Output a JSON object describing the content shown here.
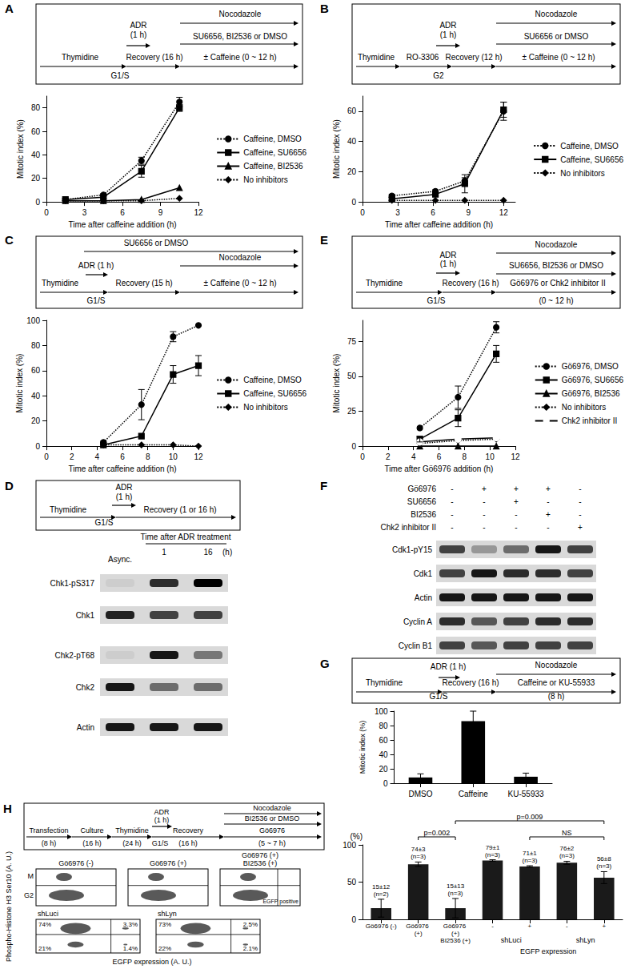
{
  "chart_data": [
    {
      "panel": "A",
      "type": "line",
      "protocol": [
        "Nocodazole",
        "ADR",
        "(1 h)",
        "SU6656, BI2536 or DMSO",
        "Thymidine",
        "G1/S",
        "Recovery (16 h)",
        "± Caffeine (0 ~ 12 h)"
      ],
      "xlabel": "Time after caffeine addition (h)",
      "ylabel": "Mitotic index (%)",
      "xlim": [
        0,
        12
      ],
      "xticks": [
        0,
        3,
        6,
        9,
        12
      ],
      "ylim": [
        0,
        90
      ],
      "yticks": [
        0,
        20,
        40,
        60,
        80
      ],
      "grid": false,
      "legend": "right",
      "x": [
        1.5,
        4.5,
        7.5,
        10.5
      ],
      "series": [
        {
          "name": "Caffeine, DMSO",
          "color": "#000000",
          "marker": "circle",
          "line_style": "dotted",
          "values": [
            2,
            6,
            35,
            85
          ],
          "errors": [
            1,
            1,
            3,
            4
          ]
        },
        {
          "name": "Caffeine, SU6656",
          "color": "#000000",
          "marker": "square",
          "line_style": "solid",
          "values": [
            2,
            4,
            26,
            80
          ],
          "errors": [
            1,
            1,
            5,
            3
          ]
        },
        {
          "name": "Caffeine, BI2536",
          "color": "#000000",
          "marker": "triangle",
          "line_style": "solid",
          "values": [
            1,
            1,
            2,
            12
          ],
          "errors": [
            null,
            null,
            null,
            null
          ]
        },
        {
          "name": "No inhibitors",
          "color": "#000000",
          "marker": "diamond",
          "line_style": "dotted",
          "values": [
            1,
            1,
            1,
            3
          ],
          "errors": [
            null,
            null,
            null,
            null
          ]
        }
      ]
    },
    {
      "panel": "B",
      "type": "line",
      "protocol": [
        "Nocodazole",
        "ADR",
        "(1 h)",
        "SU6656 or DMSO",
        "Thymidine",
        "RO-3306",
        "G2",
        "Recovery (12 h)",
        "± Caffeine (0 ~ 12 h)"
      ],
      "xlabel": "Time after caffeine addition (h)",
      "ylabel": "Mitotic index (%)",
      "xlim": [
        0,
        13
      ],
      "xticks": [
        0,
        3,
        6,
        9,
        12
      ],
      "ylim": [
        0,
        70
      ],
      "yticks": [
        0,
        20,
        40,
        60
      ],
      "grid": false,
      "legend": "right",
      "x": [
        2.5,
        6.2,
        8.7,
        12
      ],
      "series": [
        {
          "name": "Caffeine, DMSO",
          "color": "#000000",
          "marker": "circle",
          "line_style": "dotted",
          "values": [
            4,
            7,
            14,
            60
          ],
          "errors": [
            1,
            1,
            2,
            6
          ]
        },
        {
          "name": "Caffeine, SU6656",
          "color": "#000000",
          "marker": "square",
          "line_style": "solid",
          "values": [
            2,
            5,
            12,
            61
          ],
          "errors": [
            1,
            1,
            6,
            5
          ]
        },
        {
          "name": "No inhibitors",
          "color": "#000000",
          "marker": "diamond",
          "line_style": "dotted",
          "values": [
            1,
            1,
            1,
            1
          ],
          "errors": [
            null,
            null,
            null,
            null
          ]
        }
      ]
    },
    {
      "panel": "C",
      "type": "line",
      "protocol": [
        "SU6656 or DMSO",
        "Nocodazole",
        "ADR (1 h)",
        "Thymidine",
        "G1/S",
        "Recovery (15 h)",
        "± Caffeine (0 ~ 12 h)"
      ],
      "xlabel": "Time after caffeine addition (h)",
      "ylabel": "Mitotic index (%)",
      "xlim": [
        0,
        12
      ],
      "xticks": [
        0,
        2,
        4,
        6,
        8,
        10,
        12
      ],
      "ylim": [
        0,
        100
      ],
      "yticks": [
        0,
        20,
        40,
        60,
        80,
        100
      ],
      "grid": false,
      "legend": "right",
      "x": [
        4.5,
        7.5,
        10,
        12
      ],
      "series": [
        {
          "name": "Caffeine, DMSO",
          "color": "#000000",
          "marker": "circle",
          "line_style": "dotted",
          "values": [
            3,
            33,
            87,
            96
          ],
          "errors": [
            1,
            12,
            4,
            null
          ]
        },
        {
          "name": "Caffeine, SU6656",
          "color": "#000000",
          "marker": "square",
          "line_style": "solid",
          "values": [
            1,
            8,
            57,
            64
          ],
          "errors": [
            null,
            null,
            7,
            8
          ]
        },
        {
          "name": "No inhibitors",
          "color": "#000000",
          "marker": "diamond",
          "line_style": "dotted",
          "values": [
            1,
            1,
            1,
            0
          ],
          "errors": [
            null,
            null,
            null,
            null
          ]
        }
      ]
    },
    {
      "panel": "E",
      "type": "line",
      "protocol": [
        "Nocodazole",
        "ADR",
        "(1 h)",
        "SU6656, BI2536 or DMSO",
        "Thymidine",
        "G1/S",
        "Recovery (16 h)",
        "Gö6976 or Chk2 inhibitor II",
        "(0 ~ 12 h)"
      ],
      "xlabel": "Time after Gö6976 addition (h)",
      "ylabel": "Mitotic index (%)",
      "xlim": [
        0,
        12
      ],
      "xticks": [
        0,
        2,
        4,
        6,
        8,
        10,
        12
      ],
      "ylim": [
        0,
        90
      ],
      "yticks": [
        0,
        25,
        50,
        75
      ],
      "grid": false,
      "legend": "right",
      "x": [
        4.5,
        7.5,
        10.5
      ],
      "series": [
        {
          "name": "Gö6976, DMSO",
          "color": "#000000",
          "marker": "circle",
          "line_style": "dotted",
          "values": [
            13,
            35,
            85
          ],
          "errors": [
            null,
            8,
            4
          ]
        },
        {
          "name": "Gö6976, SU6656",
          "color": "#000000",
          "marker": "square",
          "line_style": "solid",
          "values": [
            5,
            20,
            66
          ],
          "errors": [
            2,
            6,
            6
          ]
        },
        {
          "name": "Gö6976, BI2536",
          "color": "#000000",
          "marker": "triangle",
          "line_style": "solid",
          "values": [
            0,
            0,
            0
          ],
          "errors": [
            null,
            null,
            null
          ]
        },
        {
          "name": "No inhibitors",
          "color": "#000000",
          "marker": "diamond",
          "line_style": "dotted",
          "values": [
            2,
            4,
            5
          ],
          "errors": [
            null,
            null,
            null
          ]
        },
        {
          "name": "Chk2 inhibitor II",
          "color": "#000000",
          "marker": "open_circle",
          "line_style": "solid",
          "values": [
            3,
            5,
            6
          ],
          "errors": [
            null,
            null,
            null
          ]
        }
      ]
    },
    {
      "panel": "G",
      "type": "bar",
      "protocol": [
        "Nocodazole",
        "ADR (1 h)",
        "Thymidine",
        "G1/S",
        "Recovery (16 h)",
        "Caffeine or KU-55933",
        "(8 h)"
      ],
      "ylabel": "Mitotic index (%)",
      "categories": [
        "DMSO",
        "Caffeine",
        "KU-55933"
      ],
      "values": [
        8,
        86,
        9
      ],
      "errors": [
        5,
        14,
        5
      ],
      "color": "#000000",
      "ylim": [
        0,
        100
      ],
      "yticks": [
        0,
        20,
        40,
        60,
        80,
        100
      ],
      "grid": false
    },
    {
      "type": "bar",
      "ylabel": "(%)",
      "xlabel": "EGFP expression",
      "categories": [
        "Gö6976 (-)",
        "Gö6976 (+)",
        "Gö6976 (+)\nBI2536 (+)",
        "-",
        "+",
        "-",
        "+"
      ],
      "values": [
        15,
        74,
        15,
        79,
        71,
        76,
        56
      ],
      "errors": [
        12,
        3,
        13,
        1,
        1,
        2,
        8
      ],
      "value_labels": [
        "15±12\n(n=2)",
        "74±3\n(n=3)",
        "15±13\n(n=3)",
        "79±1\n(n=3)",
        "71±1\n(n=3)",
        "76±2\n(n=3)",
        "56±8\n(n=3)"
      ],
      "data_labels": true,
      "color": "#1a1a1a",
      "ylim": [
        0,
        100
      ],
      "yticks": [
        0,
        50,
        100
      ],
      "grid": false,
      "groups": [
        {
          "label": "shLuci",
          "categories": [
            3,
            4
          ]
        },
        {
          "label": "shLyn",
          "categories": [
            5,
            6
          ]
        }
      ],
      "comparisons": [
        {
          "between": [
            1,
            2
          ],
          "label": "p=0.002"
        },
        {
          "between": [
            2,
            6
          ],
          "label": "p=0.009"
        },
        {
          "between": [
            4,
            6
          ],
          "label": "NS"
        }
      ]
    }
  ],
  "blots": {
    "D": {
      "panel": "D",
      "protocol": [
        "ADR",
        "(1 h)",
        "Thymidine",
        "G1/S",
        "Recovery (1 or 16 h)"
      ],
      "header": {
        "first": "Async.",
        "group": "Time after ADR treatment",
        "lanes": [
          "1",
          "16"
        ],
        "unit": "(h)"
      },
      "rows": [
        {
          "name": "Chk1-pS317",
          "intensity": [
            0.05,
            0.8,
            1
          ]
        },
        {
          "name": "Chk1",
          "intensity": [
            0.85,
            0.7,
            0.7
          ]
        },
        {
          "name": "Chk2-pT68",
          "intensity": [
            0.05,
            0.9,
            0.45
          ]
        },
        {
          "name": "Chk2",
          "intensity": [
            0.9,
            0.5,
            0.5
          ]
        },
        {
          "name": "Actin",
          "intensity": [
            0.9,
            0.9,
            0.9
          ]
        }
      ]
    },
    "F": {
      "panel": "F",
      "conditions": [
        {
          "name": "Gö6976",
          "marks": [
            "-",
            "+",
            "+",
            "+",
            "-"
          ]
        },
        {
          "name": "SU6656",
          "marks": [
            "-",
            "-",
            "+",
            "-",
            "-"
          ]
        },
        {
          "name": "BI2536",
          "marks": [
            "-",
            "-",
            "-",
            "+",
            "-"
          ]
        },
        {
          "name": "Chk2 inhibitor II",
          "marks": [
            "-",
            "-",
            "-",
            "-",
            "+"
          ]
        }
      ],
      "rows": [
        {
          "name": "Cdk1-pY15",
          "intensity": [
            0.7,
            0.3,
            0.5,
            0.9,
            0.7
          ]
        },
        {
          "name": "Cdk1",
          "intensity": [
            0.7,
            0.9,
            0.8,
            0.8,
            0.7
          ]
        },
        {
          "name": "Actin",
          "intensity": [
            0.9,
            0.9,
            0.9,
            0.9,
            0.9
          ]
        },
        {
          "name": "Cyclin A",
          "intensity": [
            0.8,
            0.6,
            0.7,
            0.8,
            0.8
          ]
        },
        {
          "name": "Cyclin B1",
          "intensity": [
            0.7,
            0.6,
            0.7,
            0.7,
            0.7
          ]
        }
      ]
    }
  },
  "flow": {
    "panel": "H",
    "protocol": [
      "Nocodazole",
      "BI2536 or DMSO",
      "ADR",
      "(1 h)",
      "Transfection",
      "(8 h)",
      "Culture",
      "(16 h)",
      "Thymidine",
      "(24 h)",
      "G1/S",
      "Recovery",
      "(16 h)",
      "Gö6976",
      "(5 ~ 7 h)"
    ],
    "ylabel": "Phospho-Histone H3 Ser10 (A. U.)",
    "xlabel": "EGFP expression (A. U.)",
    "gates": [
      "M",
      "G2"
    ],
    "gate_note": "EGFP positive",
    "plots": [
      {
        "title": "Gö6976 (-)"
      },
      {
        "title": "Gö6976 (+)"
      },
      {
        "title": "Gö6976 (+)\nBI2536 (+)"
      },
      {
        "title": "shLuci",
        "quadrants": [
          "74%",
          "3.3%",
          "21%",
          "1.4%"
        ]
      },
      {
        "title": "shLyn",
        "quadrants": [
          "73%",
          "2.5%",
          "22%",
          "2.1%"
        ]
      }
    ]
  }
}
